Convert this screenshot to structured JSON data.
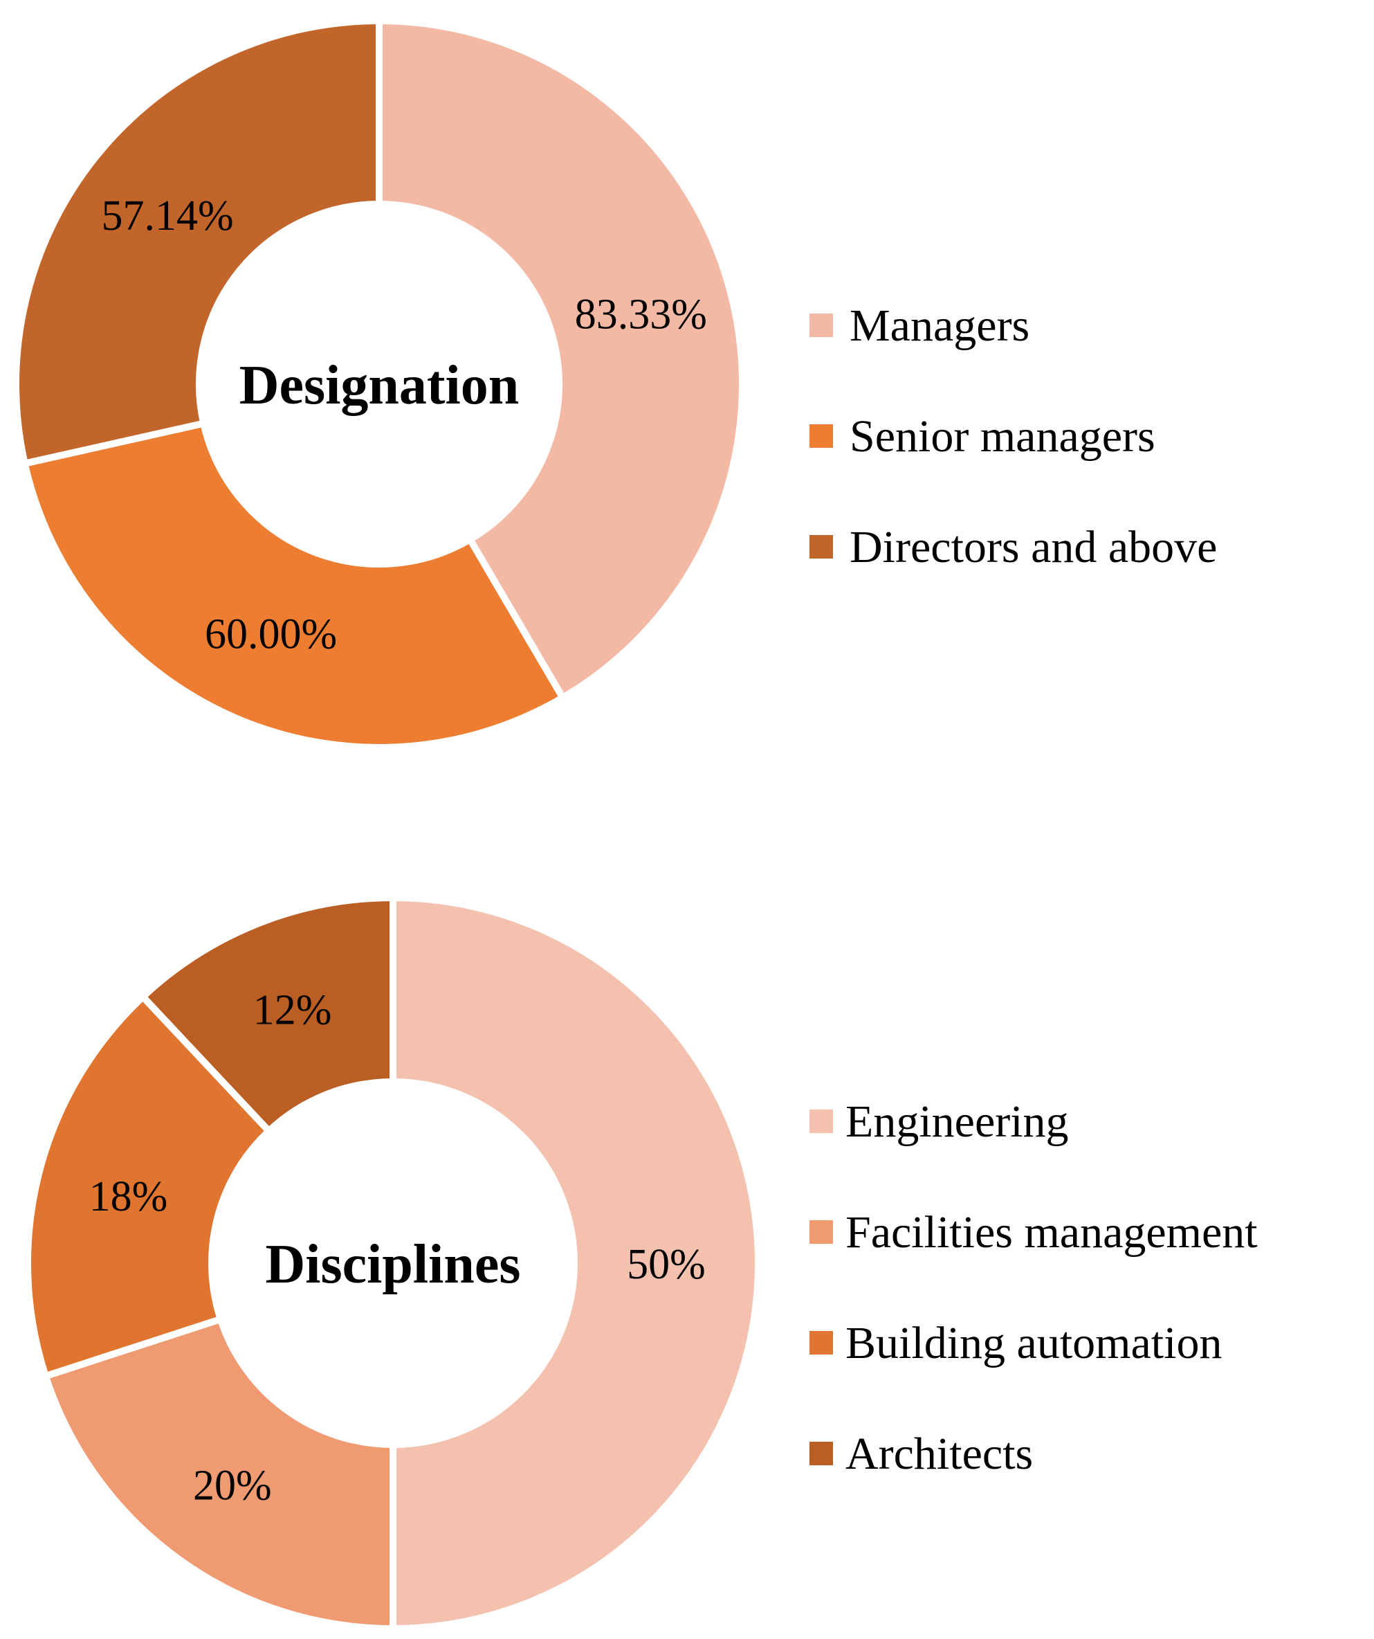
{
  "chart_data": [
    {
      "type": "pie",
      "title": "Designation",
      "categories": [
        "Managers",
        "Senior managers",
        "Directors and above"
      ],
      "values": [
        83.33,
        60.0,
        57.14
      ],
      "labels": [
        "83.33%",
        "60.00%",
        "57.14%"
      ],
      "colors": [
        "#F4B9A4",
        "#ED7D31",
        "#C2652A"
      ],
      "legend": "right"
    },
    {
      "type": "pie",
      "title": "Disciplines",
      "categories": [
        "Engineering",
        "Facilities management",
        "Building automation",
        "Architects"
      ],
      "values": [
        50,
        20,
        18,
        12
      ],
      "labels": [
        "50%",
        "20%",
        "18%",
        "12%"
      ],
      "colors": [
        "#F4C1AF",
        "#F09A72",
        "#E07530",
        "#BA5E24"
      ],
      "legend": "right"
    }
  ]
}
